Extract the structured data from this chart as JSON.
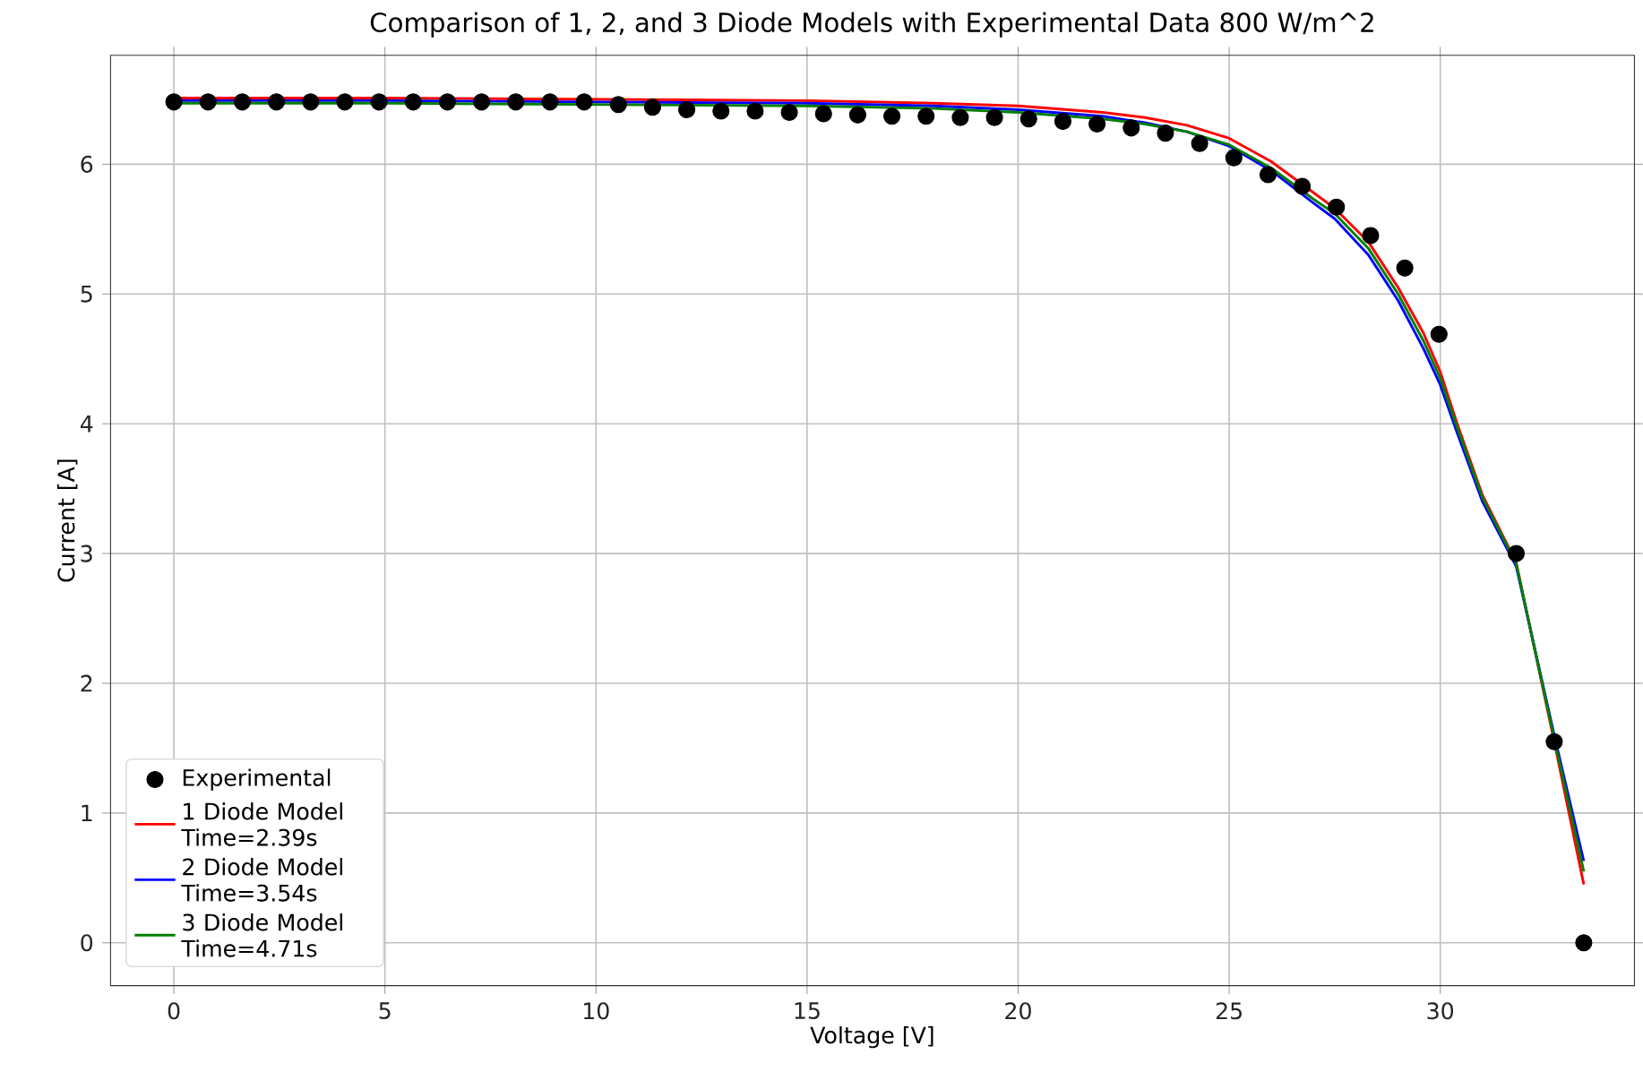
{
  "chart_data": {
    "type": "line",
    "title": "Comparison of 1, 2, and 3 Diode Models with Experimental Data 800 W/m^2",
    "xlabel": "Voltage [V]",
    "ylabel": "Current [A]",
    "xlim": [
      -1.5,
      34.6
    ],
    "ylim": [
      -0.33,
      6.84
    ],
    "xticks": [
      0,
      5,
      10,
      15,
      20,
      25,
      30
    ],
    "yticks": [
      0,
      1,
      2,
      3,
      4,
      5,
      6
    ],
    "grid": true,
    "legend": "bottom left",
    "series": [
      {
        "name": "Experimental",
        "type": "scatter",
        "color": "#000000",
        "x": [
          0,
          0.81,
          1.62,
          2.43,
          3.24,
          4.05,
          4.86,
          5.67,
          6.48,
          7.29,
          8.1,
          8.91,
          9.72,
          10.53,
          11.34,
          12.15,
          12.96,
          13.77,
          14.58,
          15.39,
          16.2,
          17.01,
          17.82,
          18.63,
          19.44,
          20.25,
          21.06,
          21.87,
          22.68,
          23.49,
          24.3,
          25.11,
          25.92,
          26.73,
          27.54,
          28.35,
          29.16,
          29.97,
          31.8,
          32.7,
          33.4
        ],
        "values": [
          6.48,
          6.48,
          6.48,
          6.48,
          6.48,
          6.48,
          6.48,
          6.48,
          6.48,
          6.48,
          6.48,
          6.48,
          6.48,
          6.46,
          6.44,
          6.42,
          6.41,
          6.41,
          6.4,
          6.39,
          6.38,
          6.37,
          6.37,
          6.36,
          6.36,
          6.35,
          6.33,
          6.31,
          6.28,
          6.24,
          6.16,
          6.05,
          5.92,
          5.83,
          5.67,
          5.45,
          5.2,
          4.69,
          3.0,
          1.55,
          0
        ]
      },
      {
        "name": "1 Diode Model Time=2.39s",
        "color": "#ff0000",
        "x": [
          0,
          5,
          10,
          15,
          18,
          20,
          22,
          23,
          24,
          25,
          26,
          27,
          27.5,
          28.3,
          29,
          29.6,
          30,
          30.4,
          31,
          31.8,
          32.7,
          33.4
        ],
        "values": [
          6.51,
          6.51,
          6.5,
          6.49,
          6.47,
          6.45,
          6.4,
          6.36,
          6.3,
          6.2,
          6.02,
          5.78,
          5.66,
          5.4,
          5.05,
          4.7,
          4.4,
          4.0,
          3.45,
          2.93,
          1.55,
          0.45
        ]
      },
      {
        "name": "2 Diode Model Time=3.54s",
        "color": "#0000ff",
        "x": [
          0,
          5,
          10,
          15,
          18,
          20,
          22,
          23,
          24,
          25,
          26,
          27,
          27.5,
          28.3,
          29,
          29.6,
          30,
          30.4,
          31,
          31.8,
          32.7,
          33.4
        ],
        "values": [
          6.49,
          6.49,
          6.48,
          6.47,
          6.45,
          6.42,
          6.37,
          6.32,
          6.25,
          6.14,
          5.95,
          5.7,
          5.58,
          5.3,
          4.95,
          4.58,
          4.3,
          3.93,
          3.4,
          2.9,
          1.6,
          0.63
        ]
      },
      {
        "name": "3 Diode Model Time=4.71s",
        "color": "#008000",
        "x": [
          0,
          5,
          10,
          15,
          18,
          20,
          22,
          23,
          24,
          25,
          26,
          27,
          27.5,
          28.3,
          29,
          29.6,
          30,
          30.4,
          31,
          31.8,
          32.7,
          33.4
        ],
        "values": [
          6.47,
          6.47,
          6.46,
          6.45,
          6.43,
          6.4,
          6.35,
          6.31,
          6.25,
          6.15,
          5.97,
          5.73,
          5.62,
          5.35,
          5.0,
          4.64,
          4.35,
          3.97,
          3.43,
          2.92,
          1.57,
          0.55
        ]
      }
    ]
  }
}
